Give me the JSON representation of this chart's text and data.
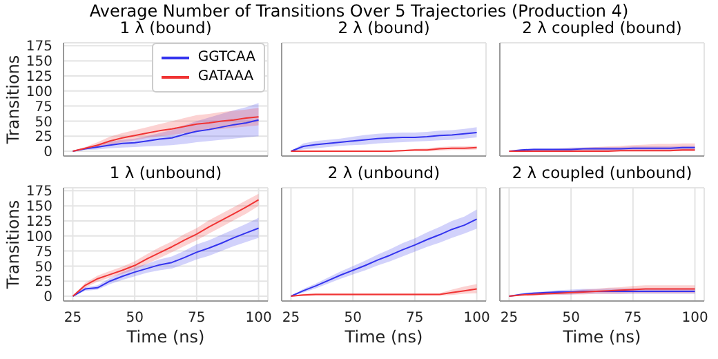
{
  "chart_data": [
    {
      "type": "line",
      "title": "1 λ (bound)",
      "annotations": [
        "Average Number of Transitions Over 5 Trajectories (Production 4)"
      ],
      "ylabel": "Transitions",
      "x": [
        25,
        30,
        35,
        40,
        45,
        50,
        55,
        60,
        65,
        70,
        75,
        80,
        85,
        90,
        95,
        100
      ],
      "xlim": [
        21.25,
        103.75
      ],
      "xticks": [
        25,
        50,
        75,
        100
      ],
      "ylim": [
        -8,
        180
      ],
      "yticks": [
        0,
        25,
        50,
        75,
        100,
        125,
        150,
        175
      ],
      "grid": true,
      "legend": "top right",
      "tick_labels": "y",
      "series": [
        {
          "name": "GGTCAA",
          "color": "#3333ee",
          "values": [
            0,
            4,
            7,
            10,
            13,
            14,
            17,
            20,
            22,
            28,
            33,
            36,
            40,
            44,
            47,
            52
          ],
          "lower": [
            0,
            2,
            3,
            5,
            6,
            7,
            8,
            9,
            10,
            12,
            15,
            17,
            19,
            21,
            23,
            25
          ],
          "upper": [
            0,
            6,
            11,
            16,
            19,
            21,
            25,
            30,
            35,
            43,
            50,
            56,
            62,
            68,
            73,
            80
          ]
        },
        {
          "name": "GATAAA",
          "color": "#f03333",
          "values": [
            0,
            5,
            10,
            17,
            22,
            26,
            30,
            34,
            37,
            41,
            45,
            47,
            50,
            52,
            55,
            57
          ],
          "lower": [
            0,
            3,
            6,
            11,
            15,
            18,
            22,
            25,
            27,
            30,
            33,
            35,
            37,
            39,
            41,
            43
          ],
          "upper": [
            0,
            7,
            15,
            24,
            30,
            35,
            40,
            45,
            50,
            55,
            60,
            62,
            65,
            67,
            69,
            72
          ]
        }
      ]
    },
    {
      "type": "line",
      "title": "2 λ (bound)",
      "x": [
        25,
        30,
        35,
        40,
        45,
        50,
        55,
        60,
        65,
        70,
        75,
        80,
        85,
        90,
        95,
        100
      ],
      "xlim": [
        21.25,
        103.75
      ],
      "xticks": [
        25,
        50,
        75,
        100
      ],
      "ylim": [
        -8,
        180
      ],
      "yticks": [
        0,
        25,
        50,
        75,
        100,
        125,
        150,
        175
      ],
      "grid": true,
      "tick_labels": false,
      "series": [
        {
          "color": "#3333ee",
          "values": [
            0,
            8,
            11,
            13,
            15,
            17,
            19,
            21,
            22,
            23,
            23,
            24,
            26,
            27,
            29,
            31
          ],
          "lower": [
            0,
            3,
            5,
            7,
            9,
            10,
            11,
            13,
            14,
            15,
            16,
            17,
            18,
            19,
            21,
            23
          ],
          "upper": [
            0,
            13,
            17,
            19,
            21,
            24,
            27,
            29,
            30,
            31,
            31,
            32,
            34,
            35,
            37,
            40
          ]
        },
        {
          "color": "#f03333",
          "values": [
            0,
            0,
            0,
            0,
            0,
            0,
            0,
            0,
            0,
            1,
            2,
            2,
            4,
            5,
            5,
            6
          ],
          "lower": [
            0,
            0,
            0,
            0,
            0,
            0,
            0,
            0,
            0,
            0,
            0,
            0,
            1,
            2,
            2,
            3
          ],
          "upper": [
            0,
            0,
            0,
            0,
            0,
            0,
            0,
            0,
            1,
            2,
            4,
            5,
            7,
            8,
            8,
            9
          ]
        }
      ]
    },
    {
      "type": "line",
      "title": "2 λ coupled (bound)",
      "x": [
        25,
        30,
        35,
        40,
        45,
        50,
        55,
        60,
        65,
        70,
        75,
        80,
        85,
        90,
        95,
        100
      ],
      "xlim": [
        21.25,
        103.75
      ],
      "xticks": [
        25,
        50,
        75,
        100
      ],
      "ylim": [
        -8,
        180
      ],
      "yticks": [
        0,
        25,
        50,
        75,
        100,
        125,
        150,
        175
      ],
      "grid": true,
      "tick_labels": false,
      "series": [
        {
          "color": "#3333ee",
          "values": [
            0,
            2,
            3,
            3,
            3,
            3,
            4,
            4,
            4,
            4,
            5,
            5,
            5,
            5,
            6,
            6
          ],
          "lower": [
            0,
            1,
            1,
            1,
            1,
            1,
            1,
            1,
            1,
            1,
            1,
            1,
            1,
            1,
            1,
            1
          ],
          "upper": [
            0,
            3,
            5,
            5,
            5,
            6,
            6,
            7,
            7,
            7,
            8,
            8,
            8,
            8,
            9,
            9
          ]
        },
        {
          "color": "#f03333",
          "values": [
            0,
            0,
            0,
            0,
            0,
            0,
            0,
            0,
            0,
            1,
            1,
            1,
            1,
            1,
            2,
            2
          ],
          "lower": [
            0,
            0,
            0,
            0,
            0,
            0,
            0,
            0,
            0,
            0,
            0,
            0,
            0,
            0,
            0,
            0
          ],
          "upper": [
            0,
            1,
            2,
            3,
            4,
            5,
            6,
            7,
            8,
            9,
            10,
            11,
            12,
            12,
            13,
            13
          ]
        }
      ]
    },
    {
      "type": "line",
      "title": "1 λ (unbound)",
      "xlabel": "Time (ns)",
      "ylabel": "Transitions",
      "x": [
        25,
        30,
        35,
        40,
        45,
        50,
        55,
        60,
        65,
        70,
        75,
        80,
        85,
        90,
        95,
        100
      ],
      "xlim": [
        21.25,
        103.75
      ],
      "xticks": [
        25,
        50,
        75,
        100
      ],
      "ylim": [
        -8,
        180
      ],
      "yticks": [
        0,
        25,
        50,
        75,
        100,
        125,
        150,
        175
      ],
      "grid": true,
      "series": [
        {
          "color": "#3333ee",
          "values": [
            0,
            12,
            14,
            25,
            33,
            40,
            46,
            52,
            56,
            64,
            73,
            80,
            88,
            97,
            105,
            113
          ],
          "lower": [
            0,
            9,
            11,
            20,
            27,
            33,
            39,
            43,
            46,
            53,
            61,
            67,
            75,
            83,
            90,
            97
          ],
          "upper": [
            0,
            15,
            18,
            30,
            40,
            48,
            54,
            61,
            66,
            75,
            86,
            93,
            102,
            111,
            120,
            130
          ]
        },
        {
          "color": "#f03333",
          "values": [
            0,
            18,
            29,
            36,
            43,
            51,
            62,
            72,
            82,
            93,
            103,
            115,
            126,
            137,
            148,
            160
          ],
          "lower": [
            0,
            14,
            24,
            31,
            37,
            44,
            54,
            63,
            73,
            83,
            93,
            104,
            115,
            126,
            137,
            150
          ],
          "upper": [
            0,
            22,
            34,
            42,
            49,
            58,
            70,
            81,
            91,
            103,
            113,
            126,
            137,
            148,
            159,
            170
          ]
        }
      ]
    },
    {
      "type": "line",
      "title": "2 λ (unbound)",
      "xlabel": "Time (ns)",
      "x": [
        25,
        30,
        35,
        40,
        45,
        50,
        55,
        60,
        65,
        70,
        75,
        80,
        85,
        90,
        95,
        100
      ],
      "xlim": [
        21.25,
        103.75
      ],
      "xticks": [
        25,
        50,
        75,
        100
      ],
      "ylim": [
        -8,
        180
      ],
      "yticks": [
        0,
        25,
        50,
        75,
        100,
        125,
        150,
        175
      ],
      "grid": true,
      "tick_labels": "x",
      "series": [
        {
          "color": "#3333ee",
          "values": [
            0,
            9,
            17,
            26,
            35,
            43,
            51,
            60,
            68,
            77,
            85,
            94,
            102,
            111,
            118,
            128
          ],
          "lower": [
            0,
            6,
            13,
            21,
            29,
            36,
            43,
            51,
            58,
            66,
            74,
            82,
            89,
            97,
            104,
            112
          ],
          "upper": [
            0,
            12,
            21,
            31,
            41,
            50,
            59,
            69,
            78,
            88,
            96,
            106,
            115,
            125,
            132,
            144
          ]
        },
        {
          "color": "#f03333",
          "values": [
            0,
            2,
            3,
            3,
            3,
            3,
            3,
            3,
            3,
            3,
            3,
            3,
            3,
            6,
            9,
            12
          ],
          "lower": [
            0,
            0,
            1,
            1,
            1,
            1,
            1,
            1,
            1,
            1,
            1,
            1,
            1,
            2,
            4,
            5
          ],
          "upper": [
            0,
            4,
            5,
            5,
            5,
            5,
            5,
            5,
            5,
            5,
            5,
            5,
            5,
            11,
            16,
            20
          ]
        }
      ]
    },
    {
      "type": "line",
      "title": "2 λ coupled (unbound)",
      "xlabel": "Time (ns)",
      "x": [
        25,
        30,
        35,
        40,
        45,
        50,
        55,
        60,
        65,
        70,
        75,
        80,
        85,
        90,
        95,
        100
      ],
      "xlim": [
        21.25,
        103.75
      ],
      "xticks": [
        25,
        50,
        75,
        100
      ],
      "ylim": [
        -8,
        180
      ],
      "yticks": [
        0,
        25,
        50,
        75,
        100,
        125,
        150,
        175
      ],
      "grid": true,
      "tick_labels": "x",
      "series": [
        {
          "color": "#3333ee",
          "values": [
            0,
            3,
            5,
            6,
            7,
            7,
            8,
            8,
            8,
            8,
            8,
            8,
            8,
            8,
            8,
            8
          ],
          "lower": [
            0,
            1,
            2,
            3,
            3,
            3,
            4,
            4,
            4,
            4,
            4,
            4,
            4,
            4,
            4,
            4
          ],
          "upper": [
            0,
            5,
            7,
            8,
            10,
            11,
            12,
            12,
            13,
            13,
            13,
            13,
            13,
            13,
            13,
            13
          ]
        },
        {
          "color": "#f03333",
          "values": [
            0,
            2,
            3,
            4,
            5,
            6,
            7,
            8,
            9,
            10,
            11,
            12,
            12,
            12,
            12,
            12
          ],
          "lower": [
            0,
            1,
            1,
            2,
            2,
            3,
            3,
            4,
            4,
            4,
            5,
            5,
            5,
            5,
            5,
            5
          ],
          "upper": [
            0,
            3,
            5,
            6,
            8,
            9,
            11,
            12,
            14,
            15,
            17,
            18,
            18,
            18,
            18,
            18
          ]
        }
      ]
    }
  ]
}
